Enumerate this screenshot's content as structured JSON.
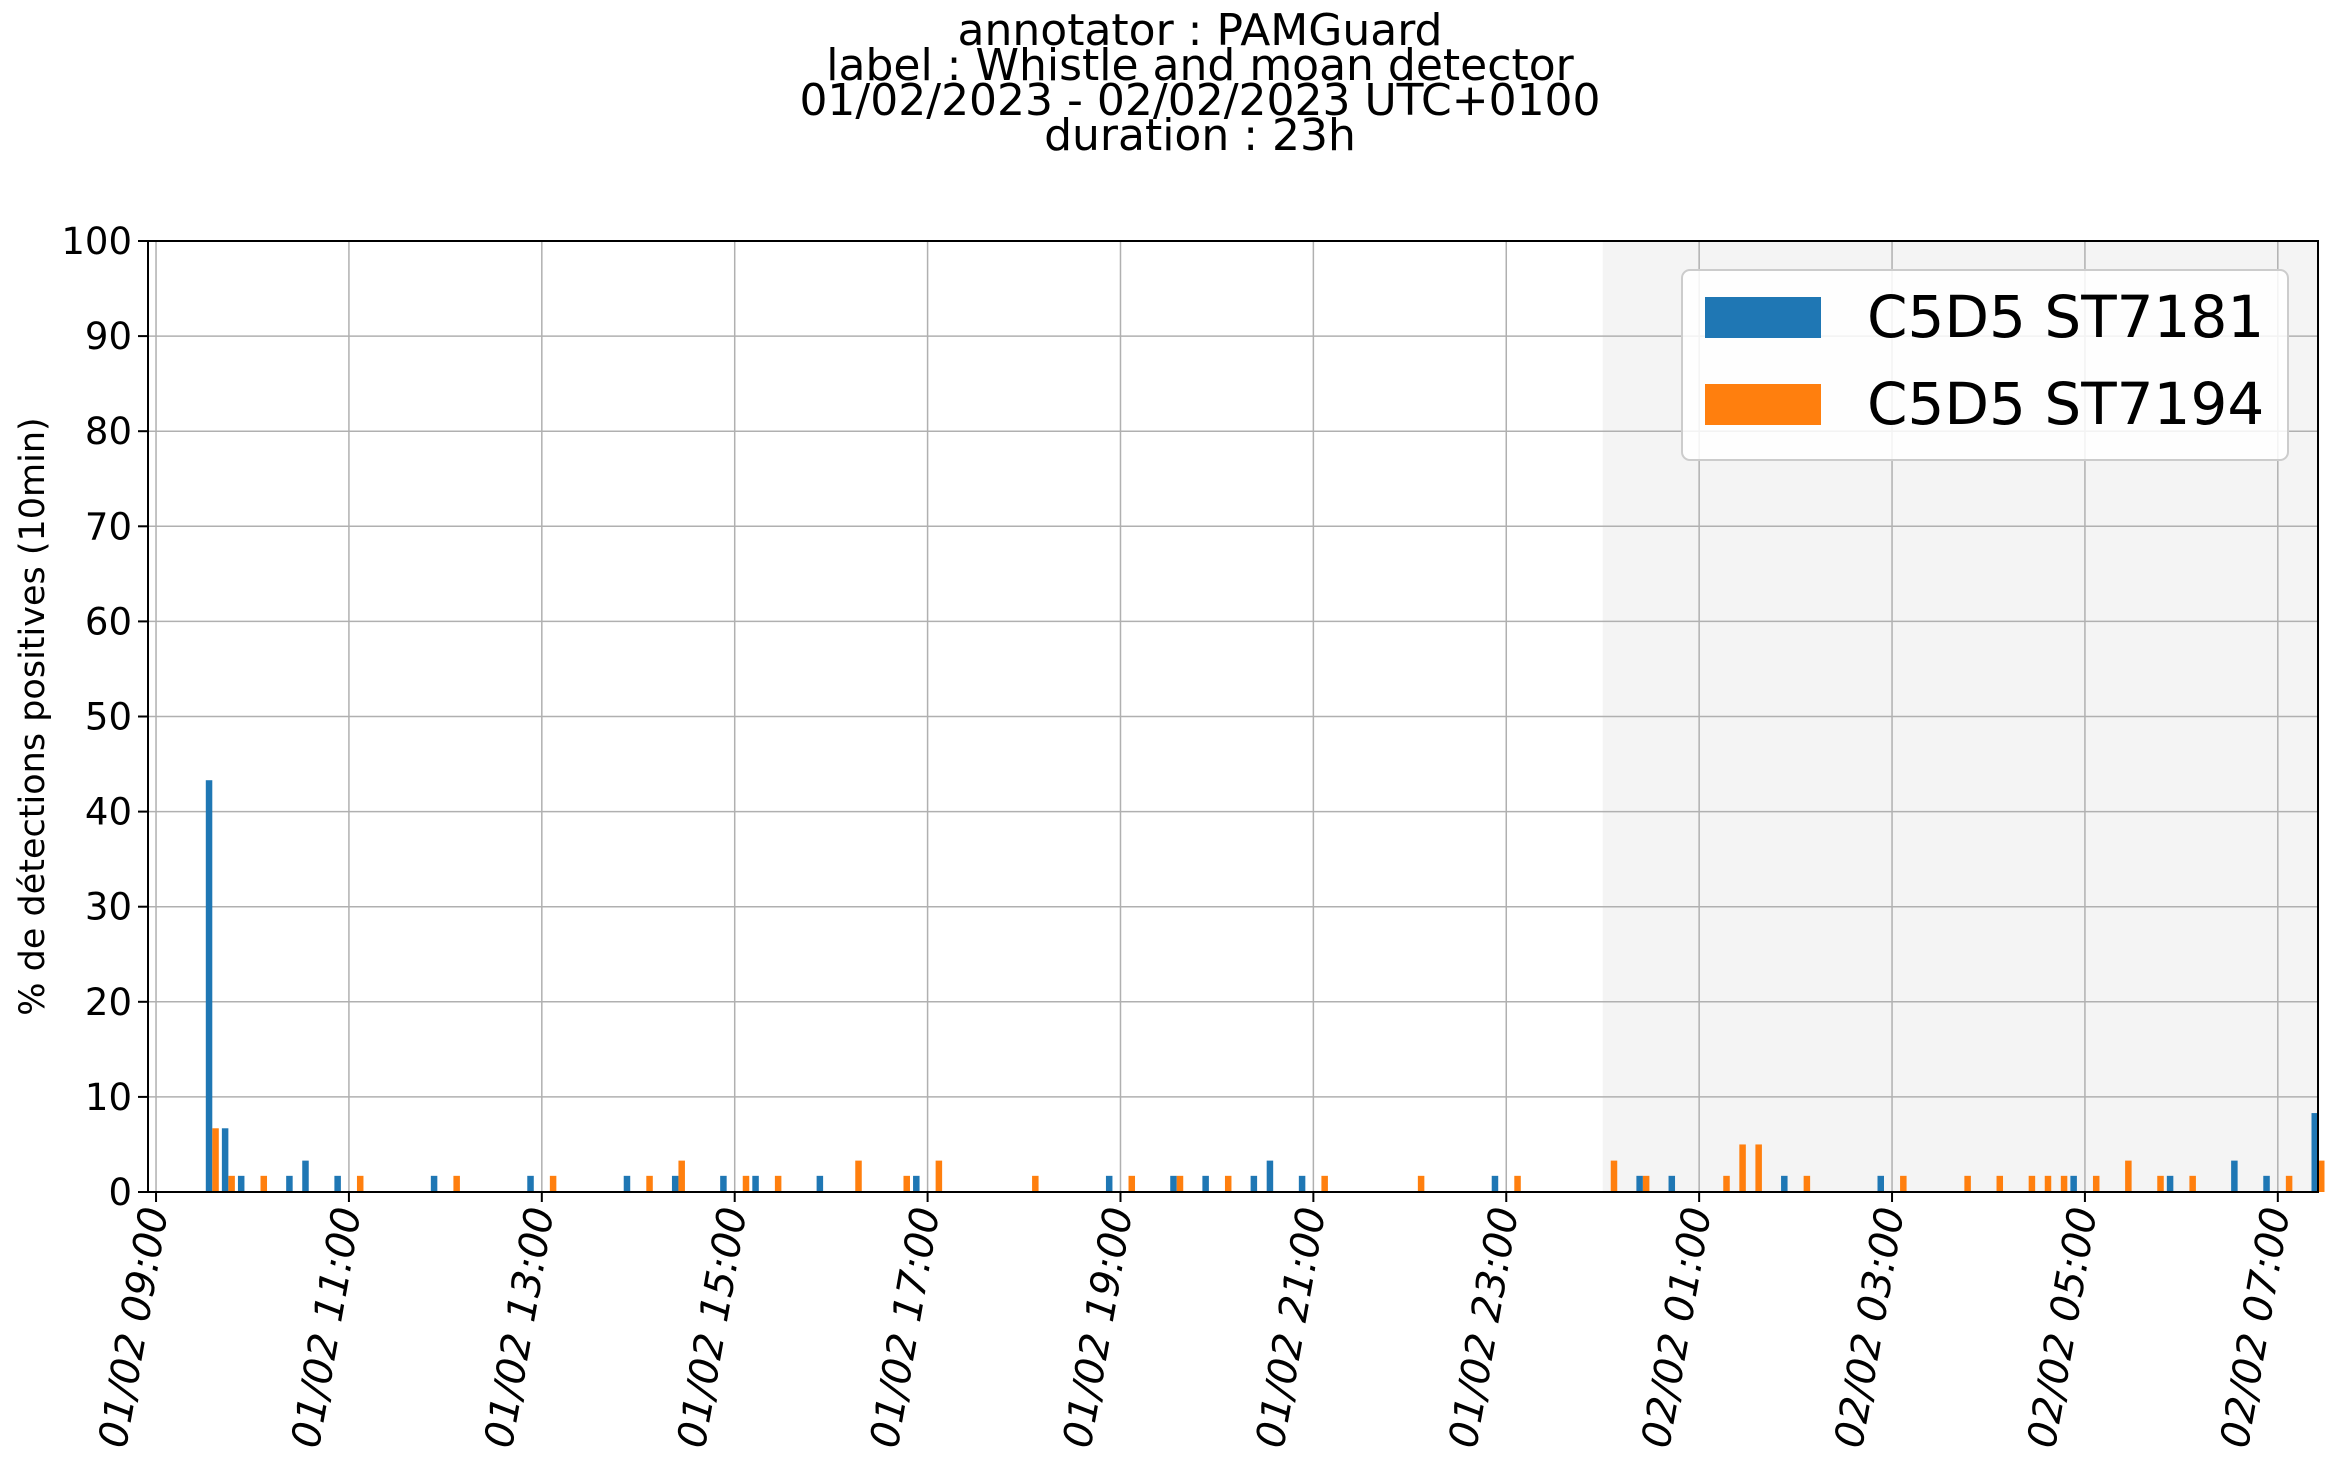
{
  "chart_data": {
    "type": "bar",
    "title_lines": [
      "annotator : PAMGuard",
      "label : Whistle and moan detector",
      "01/02/2023 - 02/02/2023 UTC+0100",
      "duration : 23h"
    ],
    "xlabel": "",
    "ylabel": "% de détections positives (10min)",
    "ylim": [
      0,
      100
    ],
    "yticks": [
      0,
      10,
      20,
      30,
      40,
      50,
      60,
      70,
      80,
      90,
      100
    ],
    "x_range": [
      "01/02 08:55",
      "02/02 07:25"
    ],
    "xticks": [
      "01/02 09:00",
      "01/02 11:00",
      "01/02 13:00",
      "01/02 15:00",
      "01/02 17:00",
      "01/02 19:00",
      "01/02 21:00",
      "01/02 23:00",
      "02/02 01:00",
      "02/02 03:00",
      "02/02 05:00",
      "02/02 07:00"
    ],
    "bin_width": "10min",
    "grid": true,
    "legend_position": "top-right",
    "shaded_region": [
      "02/02 00:00",
      "02/02 07:25"
    ],
    "shaded_color": "#f4f4f4",
    "series": [
      {
        "name": "C5D5 ST7181",
        "color": "#1f77b4",
        "points": [
          [
            "01/02 09:30",
            43.3
          ],
          [
            "01/02 09:40",
            6.7
          ],
          [
            "01/02 09:50",
            1.7
          ],
          [
            "01/02 10:20",
            1.7
          ],
          [
            "01/02 10:30",
            3.3
          ],
          [
            "01/02 10:50",
            1.7
          ],
          [
            "01/02 11:50",
            1.7
          ],
          [
            "01/02 12:50",
            1.7
          ],
          [
            "01/02 13:50",
            1.7
          ],
          [
            "01/02 14:20",
            1.7
          ],
          [
            "01/02 14:50",
            1.7
          ],
          [
            "01/02 15:10",
            1.7
          ],
          [
            "01/02 15:50",
            1.7
          ],
          [
            "01/02 16:50",
            1.7
          ],
          [
            "01/02 18:50",
            1.7
          ],
          [
            "01/02 19:30",
            1.7
          ],
          [
            "01/02 19:50",
            1.7
          ],
          [
            "01/02 20:20",
            1.7
          ],
          [
            "01/02 20:30",
            3.3
          ],
          [
            "01/02 20:50",
            1.7
          ],
          [
            "01/02 22:50",
            1.7
          ],
          [
            "02/02 00:20",
            1.7
          ],
          [
            "02/02 00:40",
            1.7
          ],
          [
            "02/02 01:50",
            1.7
          ],
          [
            "02/02 02:50",
            1.7
          ],
          [
            "02/02 04:50",
            1.7
          ],
          [
            "02/02 05:50",
            1.7
          ],
          [
            "02/02 06:30",
            3.3
          ],
          [
            "02/02 06:50",
            1.7
          ],
          [
            "02/02 07:20",
            8.3
          ]
        ]
      },
      {
        "name": "C5D5 ST7194",
        "color": "#ff7f0e",
        "points": [
          [
            "01/02 09:30",
            6.7
          ],
          [
            "01/02 09:40",
            1.7
          ],
          [
            "01/02 10:00",
            1.7
          ],
          [
            "01/02 11:00",
            1.7
          ],
          [
            "01/02 12:00",
            1.7
          ],
          [
            "01/02 13:00",
            1.7
          ],
          [
            "01/02 14:00",
            1.7
          ],
          [
            "01/02 14:20",
            3.3
          ],
          [
            "01/02 15:00",
            1.7
          ],
          [
            "01/02 15:20",
            1.7
          ],
          [
            "01/02 16:10",
            3.3
          ],
          [
            "01/02 16:40",
            1.7
          ],
          [
            "01/02 17:00",
            3.3
          ],
          [
            "01/02 18:00",
            1.7
          ],
          [
            "01/02 19:00",
            1.7
          ],
          [
            "01/02 19:30",
            1.7
          ],
          [
            "01/02 20:00",
            1.7
          ],
          [
            "01/02 21:00",
            1.7
          ],
          [
            "01/02 22:00",
            1.7
          ],
          [
            "01/02 23:00",
            1.7
          ],
          [
            "02/02 00:00",
            3.3
          ],
          [
            "02/02 00:20",
            1.7
          ],
          [
            "02/02 01:10",
            1.7
          ],
          [
            "02/02 01:20",
            5.0
          ],
          [
            "02/02 01:30",
            5.0
          ],
          [
            "02/02 02:00",
            1.7
          ],
          [
            "02/02 03:00",
            1.7
          ],
          [
            "02/02 03:40",
            1.7
          ],
          [
            "02/02 04:00",
            1.7
          ],
          [
            "02/02 04:20",
            1.7
          ],
          [
            "02/02 04:30",
            1.7
          ],
          [
            "02/02 04:40",
            1.7
          ],
          [
            "02/02 05:00",
            1.7
          ],
          [
            "02/02 05:20",
            3.3
          ],
          [
            "02/02 05:40",
            1.7
          ],
          [
            "02/02 06:00",
            1.7
          ],
          [
            "02/02 07:00",
            1.7
          ],
          [
            "02/02 07:20",
            3.3
          ]
        ]
      }
    ]
  }
}
